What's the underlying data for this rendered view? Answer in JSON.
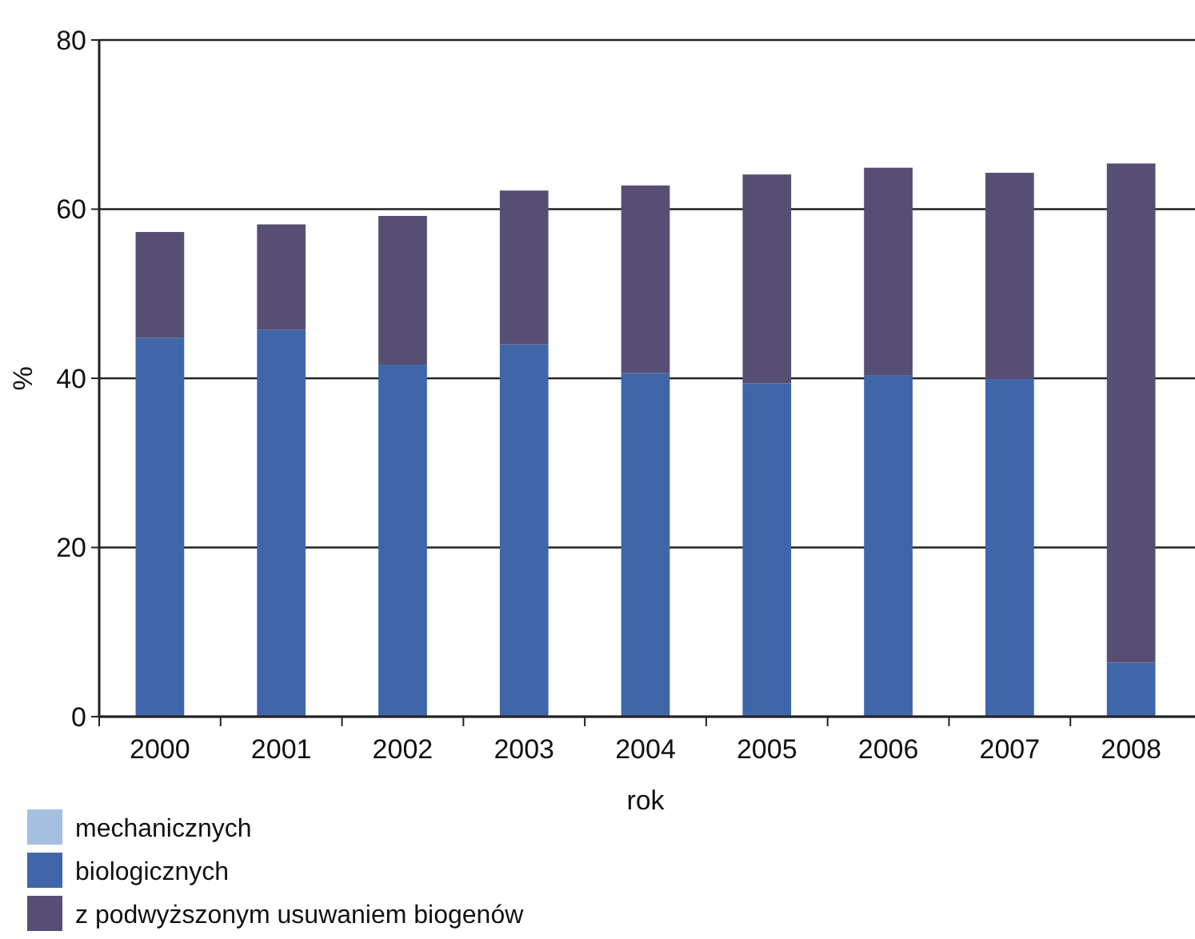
{
  "chart_data": {
    "type": "bar",
    "stacked": true,
    "xlabel": "rok",
    "ylabel": "%",
    "categories": [
      "2000",
      "2001",
      "2002",
      "2003",
      "2004",
      "2005",
      "2006",
      "2007",
      "2008"
    ],
    "series": [
      {
        "name": "mechanicznych",
        "color": "#a5bfe0",
        "values": [
          0,
          0,
          0,
          0,
          0,
          0,
          0,
          0,
          0
        ]
      },
      {
        "name": "biologicznych",
        "color": "#3f66a9",
        "values": [
          44.8,
          45.7,
          41.6,
          44.0,
          40.6,
          39.4,
          40.3,
          39.9,
          6.4
        ]
      },
      {
        "name": "z podwyższonym usuwaniem biogenów",
        "color": "#574f73",
        "values": [
          12.5,
          12.5,
          17.6,
          18.2,
          22.2,
          24.7,
          24.6,
          24.4,
          59.0
        ]
      }
    ],
    "ylim": [
      0,
      80
    ],
    "yticks": [
      0,
      20,
      40,
      60,
      80
    ],
    "grid": "y",
    "legend": "bottom left"
  }
}
